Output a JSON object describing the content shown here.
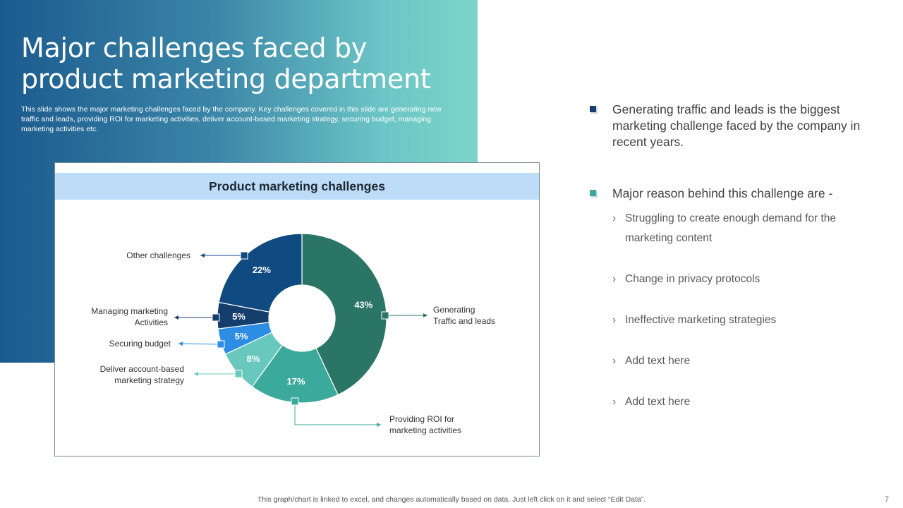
{
  "slide": {
    "title": "Major challenges faced by product marketing department",
    "subtitle": "This slide shows the major marketing challenges faced by the company. Key challenges covered in this slide are generating new traffic and leads, providing ROI for marketing activities, deliver account-based marketing strategy, securing budget, managing marketing activities etc.",
    "footer": "This graph/chart is linked to excel,  and changes automatically based on data. Just left click on it and select “Edit Data”.",
    "page_number": "7"
  },
  "chart_data": {
    "type": "pie",
    "variant": "donut",
    "title": "Product marketing challenges",
    "slices": [
      {
        "label": "Generating Traffic  and leads",
        "label_lines": [
          "Generating",
          "Traffic  and leads"
        ],
        "value": 43,
        "display": "43%",
        "color": "#2b7566"
      },
      {
        "label": "Providing  ROI for marketing activities",
        "label_lines": [
          "Providing  ROI for",
          "marketing activities"
        ],
        "value": 17,
        "display": "17%",
        "color": "#3ba99b"
      },
      {
        "label": "Deliver  account-based marketing strategy",
        "label_lines": [
          "Deliver  account-based",
          "marketing strategy"
        ],
        "value": 8,
        "display": "8%",
        "color": "#69c8be"
      },
      {
        "label": "Securing budget",
        "label_lines": [
          "Securing budget"
        ],
        "value": 5,
        "display": "5%",
        "color": "#2d8de4"
      },
      {
        "label": "Managing  marketing Activities",
        "label_lines": [
          "Managing  marketing",
          "Activities"
        ],
        "value": 5,
        "display": "5%",
        "color": "#143e6b"
      },
      {
        "label": "Other challenges",
        "label_lines": [
          "Other challenges"
        ],
        "value": 22,
        "display": "22%",
        "color": "#0f4b80"
      }
    ],
    "legend": "none"
  },
  "bullets": {
    "main": [
      {
        "text": "Generating traffic and leads is the biggest marketing challenge faced by the company in recent years.",
        "marker_color": "#143e6b"
      },
      {
        "text": "Major reason behind this challenge are -",
        "marker_color": "#3ba99b"
      }
    ],
    "chevron": "›",
    "sub": [
      "Struggling to create enough demand for the marketing content",
      "Change in privacy protocols",
      "Ineffective  marketing strategies",
      "Add text here",
      "Add text here"
    ]
  }
}
